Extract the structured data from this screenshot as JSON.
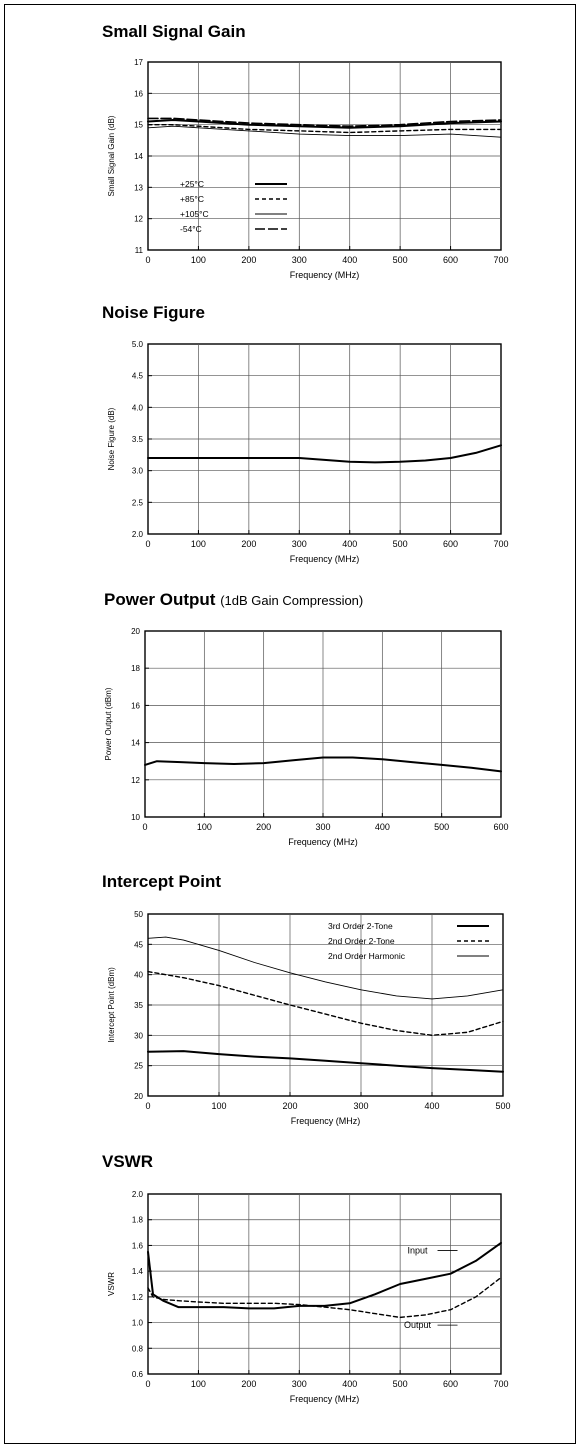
{
  "chart_data": [
    {
      "id": "gain",
      "type": "line",
      "title": "Small Signal Gain",
      "subtitle": "",
      "xlabel": "Frequency (MHz)",
      "ylabel": "Small Signal Gain (dB)",
      "xlim": [
        0,
        700
      ],
      "ylim": [
        11,
        17
      ],
      "xticks": [
        0,
        100,
        200,
        300,
        400,
        500,
        600,
        700
      ],
      "yticks": [
        11,
        12,
        13,
        14,
        15,
        16,
        17
      ],
      "xtick_labels": [
        "0",
        "100",
        "200",
        "300",
        "400",
        "500",
        "600",
        "700"
      ],
      "ytick_labels": [
        "11",
        "12",
        "13",
        "14",
        "15",
        "16",
        "17"
      ],
      "grid": true,
      "legend_position": "lower-left",
      "series": [
        {
          "name": "+25°C",
          "style": "solid",
          "x": [
            0,
            50,
            100,
            200,
            300,
            400,
            500,
            600,
            700
          ],
          "y": [
            15.1,
            15.15,
            15.1,
            15.0,
            14.95,
            14.9,
            14.95,
            15.05,
            15.1
          ]
        },
        {
          "name": "+85°C",
          "style": "dashed",
          "x": [
            0,
            50,
            100,
            200,
            300,
            400,
            500,
            600,
            700
          ],
          "y": [
            15.0,
            15.0,
            14.95,
            14.85,
            14.8,
            14.75,
            14.8,
            14.85,
            14.85
          ]
        },
        {
          "name": "+105°C",
          "style": "thin",
          "x": [
            0,
            50,
            100,
            200,
            300,
            400,
            500,
            600,
            700
          ],
          "y": [
            14.9,
            14.95,
            14.9,
            14.8,
            14.7,
            14.65,
            14.65,
            14.7,
            14.6
          ]
        },
        {
          "name": "-54°C",
          "style": "longdash",
          "x": [
            0,
            50,
            100,
            200,
            300,
            400,
            500,
            600,
            700
          ],
          "y": [
            15.2,
            15.2,
            15.15,
            15.05,
            15.0,
            14.95,
            15.0,
            15.1,
            15.15
          ]
        }
      ]
    },
    {
      "id": "nf",
      "type": "line",
      "title": "Noise Figure",
      "subtitle": "",
      "xlabel": "Frequency (MHz)",
      "ylabel": "Noise Figure (dB)",
      "xlim": [
        0,
        700
      ],
      "ylim": [
        2.0,
        5.0
      ],
      "xticks": [
        0,
        100,
        200,
        300,
        400,
        500,
        600,
        700
      ],
      "yticks": [
        2.0,
        2.5,
        3.0,
        3.5,
        4.0,
        4.5,
        5.0
      ],
      "xtick_labels": [
        "0",
        "100",
        "200",
        "300",
        "400",
        "500",
        "600",
        "700"
      ],
      "ytick_labels": [
        "2.0",
        "2.5",
        "3.0",
        "3.5",
        "4.0",
        "4.5",
        "5.0"
      ],
      "grid": true,
      "legend_position": "none",
      "series": [
        {
          "name": "",
          "style": "solid",
          "x": [
            0,
            100,
            200,
            300,
            350,
            400,
            450,
            500,
            550,
            600,
            650,
            700
          ],
          "y": [
            3.2,
            3.2,
            3.2,
            3.2,
            3.17,
            3.14,
            3.13,
            3.14,
            3.16,
            3.2,
            3.28,
            3.4
          ]
        }
      ]
    },
    {
      "id": "pout",
      "type": "line",
      "title": "Power Output",
      "subtitle": "(1dB Gain Compression)",
      "xlabel": "Frequency (MHz)",
      "ylabel": "Power Output (dBm)",
      "xlim": [
        0,
        600
      ],
      "ylim": [
        10,
        20
      ],
      "xticks": [
        0,
        100,
        200,
        300,
        400,
        500,
        600
      ],
      "yticks": [
        10,
        12,
        14,
        16,
        18,
        20
      ],
      "xtick_labels": [
        "0",
        "100",
        "200",
        "300",
        "400",
        "500",
        "600"
      ],
      "ytick_labels": [
        "10",
        "12",
        "14",
        "16",
        "18",
        "20"
      ],
      "grid": true,
      "legend_position": "none",
      "series": [
        {
          "name": "",
          "style": "solid",
          "x": [
            0,
            20,
            60,
            100,
            150,
            200,
            250,
            300,
            350,
            400,
            450,
            500,
            550,
            600
          ],
          "y": [
            12.8,
            13.0,
            12.95,
            12.9,
            12.85,
            12.9,
            13.05,
            13.2,
            13.2,
            13.1,
            12.95,
            12.8,
            12.65,
            12.45
          ]
        }
      ]
    },
    {
      "id": "ip",
      "type": "line",
      "title": "Intercept Point",
      "subtitle": "",
      "xlabel": "Frequency (MHz)",
      "ylabel": "Intercept Point (dBm)",
      "xlim": [
        0,
        500
      ],
      "ylim": [
        20,
        50
      ],
      "xticks": [
        0,
        100,
        200,
        300,
        400,
        500
      ],
      "yticks": [
        20,
        25,
        30,
        35,
        40,
        45,
        50
      ],
      "xtick_labels": [
        "0",
        "100",
        "200",
        "300",
        "400",
        "500"
      ],
      "ytick_labels": [
        "20",
        "25",
        "30",
        "35",
        "40",
        "45",
        "50"
      ],
      "grid": true,
      "legend_position": "top-right",
      "series": [
        {
          "name": "3rd Order 2-Tone",
          "style": "solid",
          "x": [
            0,
            50,
            100,
            150,
            200,
            250,
            300,
            350,
            400,
            450,
            500
          ],
          "y": [
            27.3,
            27.4,
            26.9,
            26.5,
            26.2,
            25.8,
            25.4,
            25.0,
            24.6,
            24.3,
            24.0
          ]
        },
        {
          "name": "2nd Order 2-Tone",
          "style": "dashed",
          "x": [
            0,
            25,
            50,
            100,
            150,
            200,
            250,
            300,
            350,
            400,
            450,
            500
          ],
          "y": [
            40.5,
            40.0,
            39.5,
            38.2,
            36.6,
            35.0,
            33.5,
            32.0,
            30.8,
            30.0,
            30.5,
            32.3
          ]
        },
        {
          "name": "2nd Order Harmonic",
          "style": "thin",
          "x": [
            0,
            25,
            50,
            100,
            150,
            200,
            250,
            300,
            350,
            400,
            450,
            500
          ],
          "y": [
            46.0,
            46.2,
            45.7,
            44.0,
            42.0,
            40.3,
            38.8,
            37.5,
            36.5,
            36.0,
            36.5,
            37.5
          ]
        }
      ]
    },
    {
      "id": "vswr",
      "type": "line",
      "title": "VSWR",
      "subtitle": "",
      "xlabel": "Frequency (MHz)",
      "ylabel": "VSWR",
      "xlim": [
        0,
        700
      ],
      "ylim": [
        0.6,
        2.0
      ],
      "xticks": [
        0,
        100,
        200,
        300,
        400,
        500,
        600,
        700
      ],
      "yticks": [
        0.6,
        0.8,
        1.0,
        1.2,
        1.4,
        1.6,
        1.8,
        2.0
      ],
      "xtick_labels": [
        "0",
        "100",
        "200",
        "300",
        "400",
        "500",
        "600",
        "700"
      ],
      "ytick_labels": [
        "0.6",
        "0.8",
        "1.0",
        "1.2",
        "1.4",
        "1.6",
        "1.8",
        "2.0"
      ],
      "grid": true,
      "legend_position": "inline",
      "annotations": [
        {
          "text": "Input",
          "x": 590,
          "y": 1.56
        },
        {
          "text": "Output",
          "x": 590,
          "y": 0.98
        }
      ],
      "series": [
        {
          "name": "Input",
          "style": "solid",
          "x": [
            0,
            10,
            30,
            60,
            100,
            150,
            200,
            250,
            300,
            350,
            400,
            450,
            500,
            550,
            600,
            650,
            700
          ],
          "y": [
            1.55,
            1.22,
            1.17,
            1.12,
            1.12,
            1.12,
            1.11,
            1.11,
            1.13,
            1.13,
            1.15,
            1.22,
            1.3,
            1.34,
            1.38,
            1.48,
            1.62
          ]
        },
        {
          "name": "Output",
          "style": "dashed",
          "x": [
            0,
            10,
            30,
            60,
            100,
            150,
            200,
            250,
            300,
            350,
            400,
            450,
            500,
            550,
            600,
            650,
            700
          ],
          "y": [
            1.27,
            1.2,
            1.18,
            1.17,
            1.16,
            1.15,
            1.15,
            1.15,
            1.14,
            1.12,
            1.1,
            1.07,
            1.04,
            1.06,
            1.1,
            1.2,
            1.35
          ]
        }
      ]
    }
  ]
}
